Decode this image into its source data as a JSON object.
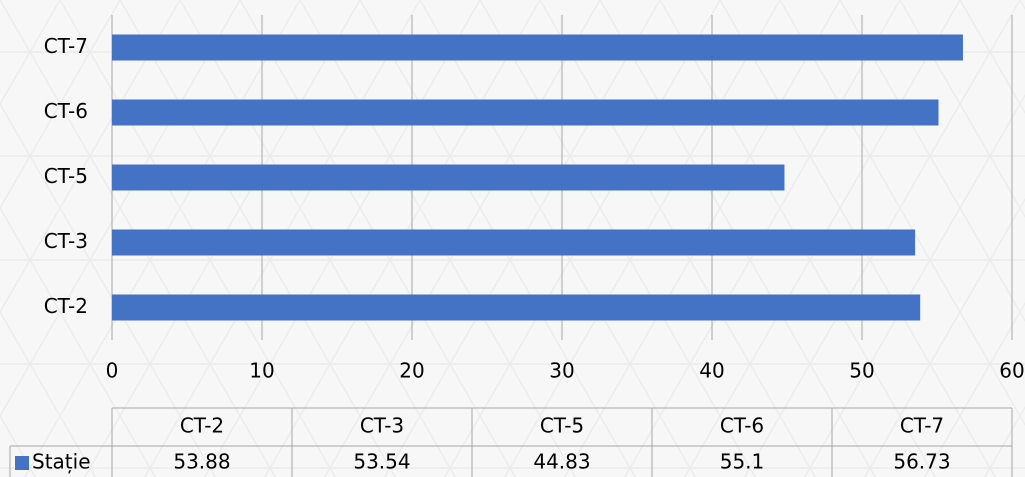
{
  "chart_data": {
    "type": "bar",
    "horizontal": true,
    "categories": [
      "CT-2",
      "CT-3",
      "CT-5",
      "CT-6",
      "CT-7"
    ],
    "series": [
      {
        "name": "Stație",
        "color": "#4472c4",
        "values": [
          53.88,
          53.54,
          44.83,
          55.1,
          56.73
        ]
      }
    ],
    "xlim": [
      0,
      60
    ],
    "xticks": [
      0,
      10,
      20,
      30,
      40,
      50,
      60
    ],
    "grid": true,
    "data_table": true
  }
}
